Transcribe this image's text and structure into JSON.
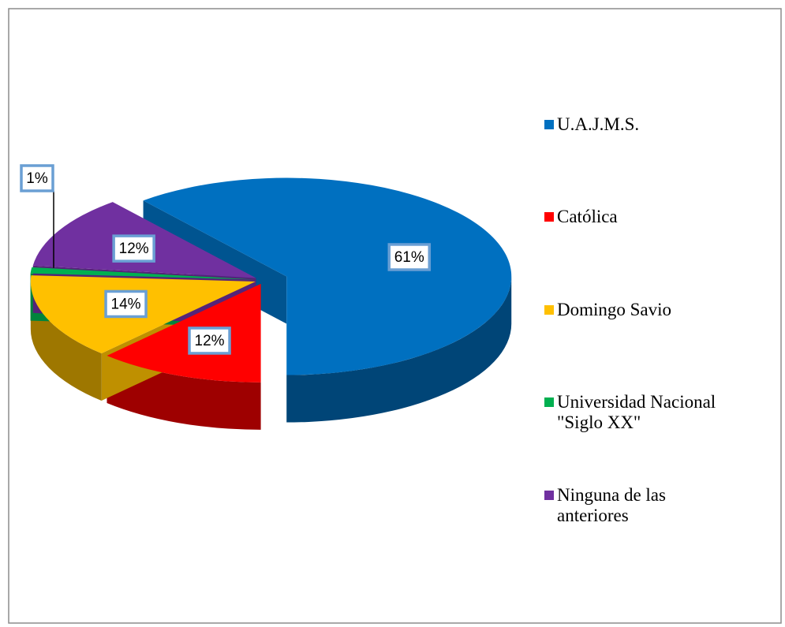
{
  "chart_data": {
    "type": "pie",
    "categories": [
      "U.A.J.M.S.",
      "Católica",
      "Domingo Savio",
      "Universidad Nacional \"Siglo XX\"",
      "Ninguna de las anteriores"
    ],
    "values": [
      61,
      12,
      14,
      1,
      12
    ],
    "value_labels": [
      "61%",
      "12%",
      "14%",
      "1%",
      "12%"
    ],
    "colors": [
      "#0070c0",
      "#ff0000",
      "#ffc000",
      "#00b050",
      "#7030a0"
    ],
    "legend": "right"
  }
}
